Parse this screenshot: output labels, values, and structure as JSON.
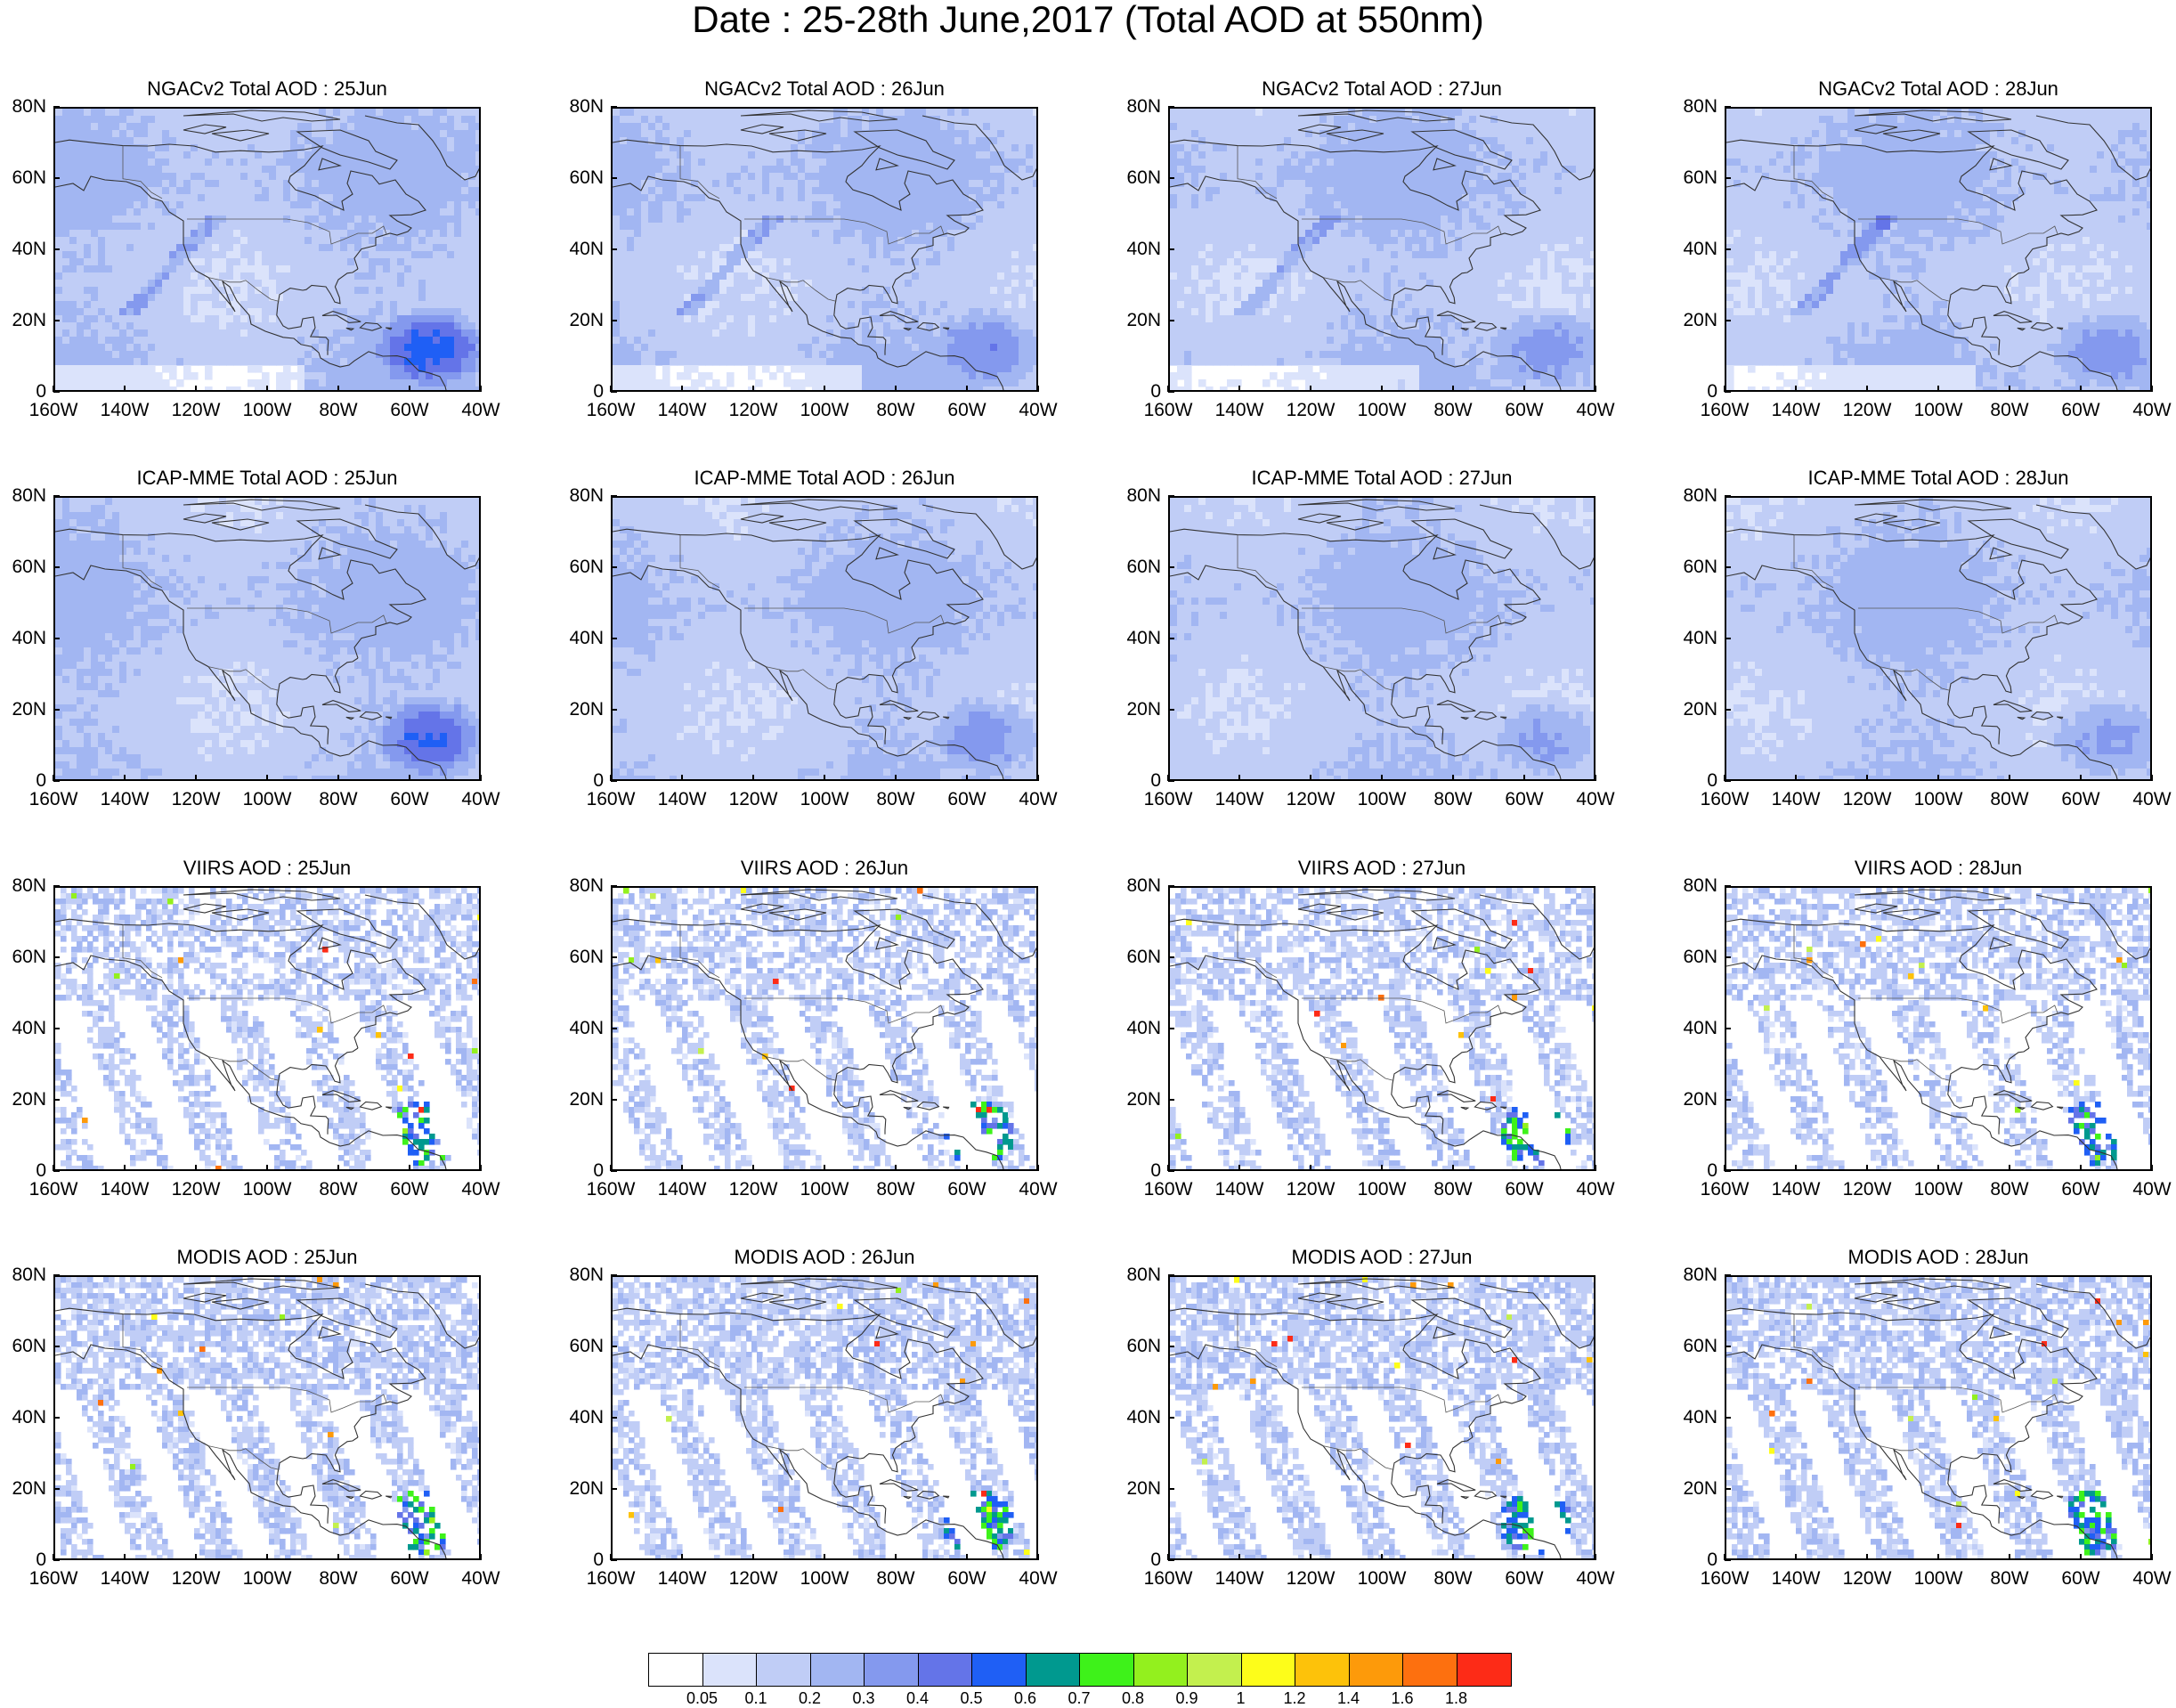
{
  "title": "Date : 25-28th June,2017 (Total AOD at 550nm)",
  "y_tick_labels": [
    "80N",
    "60N",
    "40N",
    "20N",
    "0"
  ],
  "x_tick_labels": [
    "160W",
    "140W",
    "120W",
    "100W",
    "80W",
    "60W",
    "40W"
  ],
  "map_extent": {
    "lon_min": -160,
    "lon_max": -40,
    "lat_min": 0,
    "lat_max": 80
  },
  "rows": [
    {
      "product": "NGACv2 Total AOD",
      "kind": "model",
      "panels": [
        "NGACv2 Total AOD : 25Jun",
        "NGACv2 Total AOD : 26Jun",
        "NGACv2 Total AOD : 27Jun",
        "NGACv2 Total AOD : 28Jun"
      ]
    },
    {
      "product": "ICAP-MME Total AOD",
      "kind": "model",
      "panels": [
        "ICAP-MME Total AOD : 25Jun",
        "ICAP-MME Total AOD : 26Jun",
        "ICAP-MME Total AOD : 27Jun",
        "ICAP-MME Total AOD : 28Jun"
      ]
    },
    {
      "product": "VIIRS AOD",
      "kind": "satellite",
      "panels": [
        "VIIRS AOD : 25Jun",
        "VIIRS AOD : 26Jun",
        "VIIRS AOD : 27Jun",
        "VIIRS AOD : 28Jun"
      ]
    },
    {
      "product": "MODIS AOD",
      "kind": "satellite",
      "panels": [
        "MODIS AOD : 25Jun",
        "MODIS AOD : 26Jun",
        "MODIS AOD : 27Jun",
        "MODIS AOD : 28Jun"
      ]
    }
  ],
  "colorbar": {
    "labels": [
      "0.05",
      "0.1",
      "0.2",
      "0.3",
      "0.4",
      "0.5",
      "0.6",
      "0.7",
      "0.8",
      "0.9",
      "1",
      "1.2",
      "1.4",
      "1.6",
      "1.8"
    ],
    "colors": [
      "#ffffff",
      "#dbe3fb",
      "#c0cdf6",
      "#a2b6f2",
      "#8499ee",
      "#6474e8",
      "#1f5ff5",
      "#00998f",
      "#3ef21a",
      "#93f01e",
      "#c3f04e",
      "#fdfd1a",
      "#fdc20a",
      "#fd9a0a",
      "#fd700f",
      "#fd2b17"
    ]
  }
}
